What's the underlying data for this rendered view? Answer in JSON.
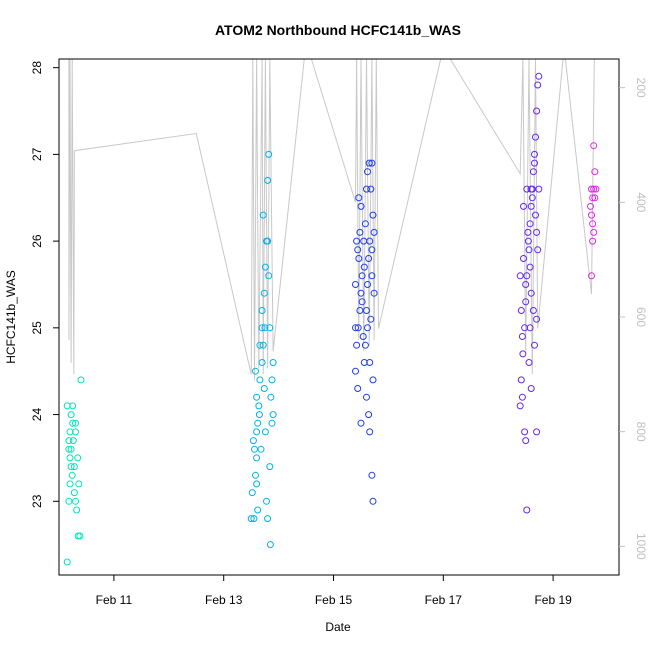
{
  "chart_data": {
    "type": "scatter",
    "title": "ATOM2 Northbound HCFC141b_WAS",
    "xlabel": "Date",
    "ylabel": "HCFC141b_WAS",
    "xlim": [
      10.0,
      20.2
    ],
    "ylim": [
      22.15,
      28.1
    ],
    "x_ticks": [
      {
        "value": 11,
        "label": "Feb 11"
      },
      {
        "value": 13,
        "label": "Feb 13"
      },
      {
        "value": 15,
        "label": "Feb 15"
      },
      {
        "value": 17,
        "label": "Feb 17"
      },
      {
        "value": 19,
        "label": "Feb 19"
      }
    ],
    "y_ticks": [
      23,
      24,
      25,
      26,
      27,
      28
    ],
    "y2_label": "",
    "y2_lim": [
      1050,
      150
    ],
    "y2_ticks": [
      200,
      400,
      600,
      800,
      1000
    ],
    "colors": {
      "flight1": "#00e6b8",
      "flight2": "#00b4e6",
      "flight3": "#1e3cf0",
      "flight4": "#6428f0",
      "flight5": "#e028e8",
      "altitude": "#c8c8c8"
    },
    "altitude_trace": [
      [
        10.18,
        150
      ],
      [
        10.18,
        640
      ],
      [
        10.2,
        150
      ],
      [
        10.22,
        680
      ],
      [
        10.24,
        150
      ],
      [
        10.27,
        700
      ],
      [
        10.28,
        310
      ],
      [
        12.5,
        280
      ],
      [
        13.5,
        700
      ],
      [
        13.53,
        150
      ],
      [
        13.56,
        710
      ],
      [
        13.6,
        150
      ],
      [
        13.64,
        690
      ],
      [
        13.7,
        150
      ],
      [
        13.72,
        700
      ],
      [
        13.76,
        150
      ],
      [
        13.8,
        690
      ],
      [
        13.84,
        150
      ],
      [
        13.9,
        660
      ],
      [
        14.5,
        120
      ],
      [
        15.4,
        400
      ],
      [
        15.42,
        150
      ],
      [
        15.46,
        640
      ],
      [
        15.5,
        150
      ],
      [
        15.55,
        660
      ],
      [
        15.6,
        150
      ],
      [
        15.65,
        650
      ],
      [
        15.7,
        150
      ],
      [
        15.74,
        640
      ],
      [
        15.78,
        150
      ],
      [
        15.82,
        620
      ],
      [
        17.0,
        130
      ],
      [
        18.4,
        350
      ],
      [
        18.45,
        150
      ],
      [
        18.5,
        660
      ],
      [
        18.56,
        150
      ],
      [
        18.62,
        700
      ],
      [
        18.68,
        150
      ],
      [
        18.72,
        620
      ],
      [
        19.2,
        130
      ],
      [
        19.7,
        560
      ],
      [
        19.75,
        150
      ]
    ],
    "series": [
      {
        "name": "flight1",
        "color": "#00e6b8",
        "points": [
          [
            10.15,
            22.3
          ],
          [
            10.18,
            23.0
          ],
          [
            10.2,
            23.2
          ],
          [
            10.22,
            23.4
          ],
          [
            10.18,
            23.6
          ],
          [
            10.2,
            23.8
          ],
          [
            10.22,
            24.0
          ],
          [
            10.15,
            24.1
          ],
          [
            10.25,
            24.1
          ],
          [
            10.2,
            23.5
          ],
          [
            10.24,
            23.3
          ],
          [
            10.26,
            23.7
          ],
          [
            10.28,
            23.1
          ],
          [
            10.3,
            23.9
          ],
          [
            10.22,
            23.6
          ],
          [
            10.28,
            23.4
          ],
          [
            10.32,
            22.9
          ],
          [
            10.35,
            22.6
          ],
          [
            10.38,
            22.6
          ],
          [
            10.34,
            23.5
          ],
          [
            10.3,
            23.8
          ],
          [
            10.36,
            23.2
          ],
          [
            10.4,
            24.4
          ],
          [
            10.18,
            23.7
          ],
          [
            10.25,
            23.9
          ],
          [
            10.3,
            23.0
          ]
        ]
      },
      {
        "name": "flight2",
        "color": "#00b4e6",
        "points": [
          [
            13.5,
            22.8
          ],
          [
            13.55,
            22.8
          ],
          [
            13.52,
            23.1
          ],
          [
            13.58,
            23.3
          ],
          [
            13.6,
            23.5
          ],
          [
            13.54,
            23.7
          ],
          [
            13.62,
            23.9
          ],
          [
            13.65,
            24.0
          ],
          [
            13.6,
            24.2
          ],
          [
            13.66,
            24.4
          ],
          [
            13.7,
            24.6
          ],
          [
            13.72,
            24.8
          ],
          [
            13.75,
            25.0
          ],
          [
            13.7,
            25.2
          ],
          [
            13.74,
            25.4
          ],
          [
            13.76,
            25.7
          ],
          [
            13.78,
            26.0
          ],
          [
            13.72,
            26.3
          ],
          [
            13.8,
            26.7
          ],
          [
            13.82,
            27.0
          ],
          [
            13.85,
            22.5
          ],
          [
            13.8,
            22.8
          ],
          [
            13.84,
            23.4
          ],
          [
            13.86,
            24.2
          ],
          [
            13.88,
            24.4
          ],
          [
            13.9,
            24.6
          ],
          [
            13.84,
            25.0
          ],
          [
            13.82,
            25.6
          ],
          [
            13.8,
            26.0
          ],
          [
            13.78,
            23.0
          ],
          [
            13.76,
            23.8
          ],
          [
            13.68,
            23.6
          ],
          [
            13.64,
            24.1
          ],
          [
            13.6,
            23.8
          ],
          [
            13.56,
            23.6
          ],
          [
            13.58,
            24.5
          ],
          [
            13.66,
            24.8
          ],
          [
            13.7,
            25.0
          ],
          [
            13.74,
            24.3
          ],
          [
            13.9,
            24.0
          ],
          [
            13.88,
            23.9
          ],
          [
            13.6,
            23.2
          ],
          [
            13.62,
            22.9
          ]
        ]
      },
      {
        "name": "flight3",
        "color": "#1e3cf0",
        "points": [
          [
            15.4,
            24.5
          ],
          [
            15.42,
            24.8
          ],
          [
            15.45,
            25.0
          ],
          [
            15.48,
            25.2
          ],
          [
            15.5,
            25.4
          ],
          [
            15.52,
            25.6
          ],
          [
            15.46,
            25.8
          ],
          [
            15.55,
            26.0
          ],
          [
            15.58,
            26.2
          ],
          [
            15.5,
            26.4
          ],
          [
            15.6,
            26.6
          ],
          [
            15.62,
            26.8
          ],
          [
            15.65,
            26.9
          ],
          [
            15.7,
            26.9
          ],
          [
            15.68,
            26.6
          ],
          [
            15.72,
            26.3
          ],
          [
            15.66,
            26.0
          ],
          [
            15.64,
            25.8
          ],
          [
            15.7,
            25.6
          ],
          [
            15.74,
            25.4
          ],
          [
            15.6,
            25.2
          ],
          [
            15.62,
            25.0
          ],
          [
            15.58,
            24.8
          ],
          [
            15.56,
            24.6
          ],
          [
            15.6,
            24.2
          ],
          [
            15.64,
            24.0
          ],
          [
            15.66,
            23.8
          ],
          [
            15.7,
            23.3
          ],
          [
            15.72,
            23.0
          ],
          [
            15.44,
            25.9
          ],
          [
            15.48,
            26.1
          ],
          [
            15.52,
            25.3
          ],
          [
            15.54,
            24.9
          ],
          [
            15.4,
            25.5
          ],
          [
            15.44,
            24.3
          ],
          [
            15.5,
            23.9
          ],
          [
            15.46,
            26.5
          ],
          [
            15.56,
            25.7
          ],
          [
            15.68,
            25.1
          ],
          [
            15.72,
            24.4
          ],
          [
            15.74,
            26.1
          ],
          [
            15.4,
            25.0
          ],
          [
            15.42,
            26.0
          ],
          [
            15.62,
            25.5
          ],
          [
            15.66,
            24.6
          ],
          [
            15.7,
            25.9
          ]
        ]
      },
      {
        "name": "flight4",
        "color": "#6428f0",
        "points": [
          [
            18.4,
            24.1
          ],
          [
            18.42,
            24.4
          ],
          [
            18.45,
            24.7
          ],
          [
            18.48,
            25.0
          ],
          [
            18.5,
            25.3
          ],
          [
            18.52,
            25.6
          ],
          [
            18.46,
            25.8
          ],
          [
            18.55,
            26.0
          ],
          [
            18.58,
            26.2
          ],
          [
            18.6,
            26.4
          ],
          [
            18.62,
            26.6
          ],
          [
            18.64,
            26.8
          ],
          [
            18.66,
            27.0
          ],
          [
            18.68,
            27.2
          ],
          [
            18.7,
            27.5
          ],
          [
            18.72,
            27.8
          ],
          [
            18.74,
            27.9
          ],
          [
            18.66,
            26.9
          ],
          [
            18.6,
            26.6
          ],
          [
            18.56,
            25.9
          ],
          [
            18.5,
            25.5
          ],
          [
            18.44,
            24.9
          ],
          [
            18.48,
            23.8
          ],
          [
            18.5,
            23.7
          ],
          [
            18.52,
            22.9
          ],
          [
            18.7,
            23.8
          ],
          [
            18.64,
            25.2
          ],
          [
            18.6,
            25.4
          ],
          [
            18.58,
            25.7
          ],
          [
            18.54,
            26.1
          ],
          [
            18.62,
            26.5
          ],
          [
            18.68,
            26.3
          ],
          [
            18.72,
            25.9
          ],
          [
            18.4,
            25.6
          ],
          [
            18.46,
            26.4
          ],
          [
            18.42,
            25.2
          ],
          [
            18.44,
            24.2
          ],
          [
            18.56,
            24.6
          ],
          [
            18.6,
            24.3
          ],
          [
            18.66,
            24.8
          ],
          [
            18.7,
            25.1
          ],
          [
            18.74,
            26.6
          ],
          [
            18.7,
            26.1
          ],
          [
            18.52,
            26.6
          ],
          [
            18.58,
            25.0
          ]
        ]
      },
      {
        "name": "flight5",
        "color": "#e028e8",
        "points": [
          [
            19.7,
            25.6
          ],
          [
            19.72,
            26.0
          ],
          [
            19.74,
            26.1
          ],
          [
            19.7,
            26.3
          ],
          [
            19.72,
            26.5
          ],
          [
            19.74,
            26.6
          ],
          [
            19.76,
            26.8
          ],
          [
            19.74,
            27.1
          ],
          [
            19.7,
            26.6
          ],
          [
            19.76,
            26.5
          ],
          [
            19.72,
            26.2
          ],
          [
            19.78,
            26.6
          ],
          [
            19.68,
            26.4
          ]
        ]
      }
    ]
  }
}
